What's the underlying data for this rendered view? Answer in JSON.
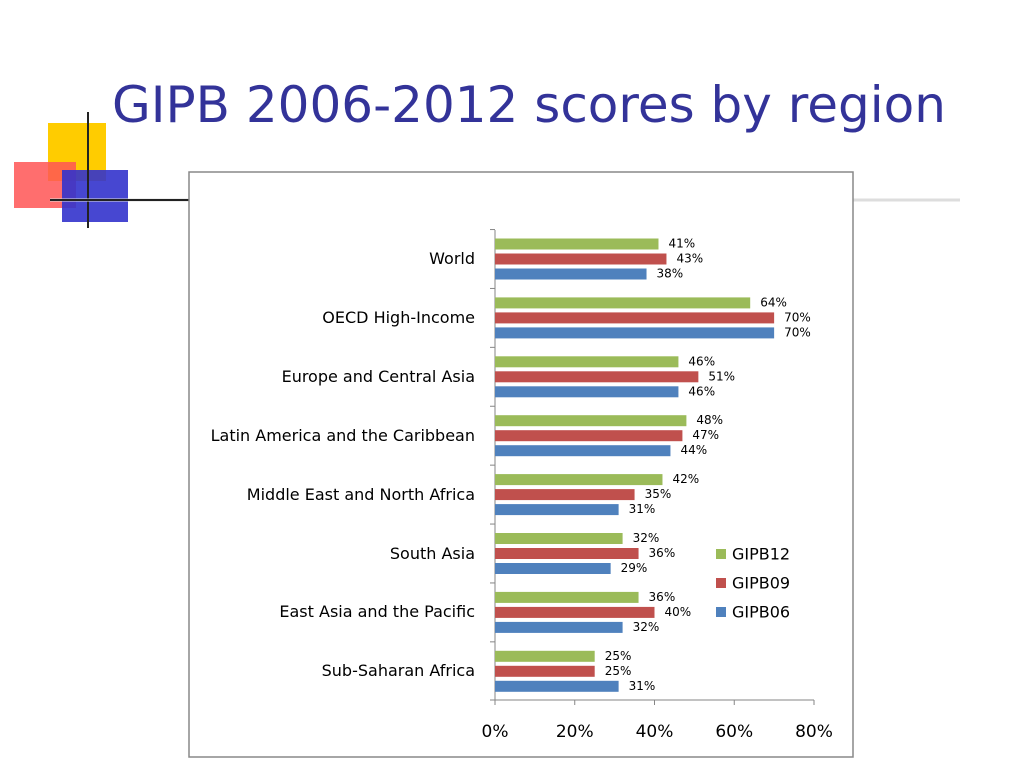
{
  "chart_data": {
    "type": "hbar",
    "title": "GIPB 2006-2012 scores by region",
    "categories": [
      "World",
      "OECD High-Income",
      "Europe and Central Asia",
      "Latin America and the Caribbean",
      "Middle East and North Africa",
      "South Asia",
      "East Asia and the Pacific",
      "Sub-Saharan Africa"
    ],
    "series": [
      {
        "name": "GIPB12",
        "color": "#9bbb59",
        "values": [
          41,
          64,
          46,
          48,
          42,
          32,
          36,
          25
        ],
        "value_labels": [
          "41%",
          "64%",
          "46%",
          "48%",
          "42%",
          "32%",
          "36%",
          "25%"
        ]
      },
      {
        "name": "GIPB09",
        "color": "#c0504d",
        "values": [
          43,
          70,
          51,
          47,
          35,
          36,
          40,
          25
        ],
        "value_labels": [
          "43%",
          "70%",
          "51%",
          "47%",
          "35%",
          "36%",
          "40%",
          "25%"
        ]
      },
      {
        "name": "GIPB06",
        "color": "#4f81bd",
        "values": [
          38,
          70,
          46,
          44,
          31,
          29,
          32,
          31
        ],
        "value_labels": [
          "38%",
          "70%",
          "46%",
          "44%",
          "31%",
          "29%",
          "32%",
          "31%"
        ]
      }
    ],
    "xlim": [
      0,
      80
    ],
    "xticks": [
      {
        "value": 0,
        "label": "0%"
      },
      {
        "value": 20,
        "label": "20%"
      },
      {
        "value": 40,
        "label": "40%"
      },
      {
        "value": 60,
        "label": "60%"
      },
      {
        "value": 80,
        "label": "80%"
      }
    ],
    "legend_position": "right",
    "grid": false
  }
}
